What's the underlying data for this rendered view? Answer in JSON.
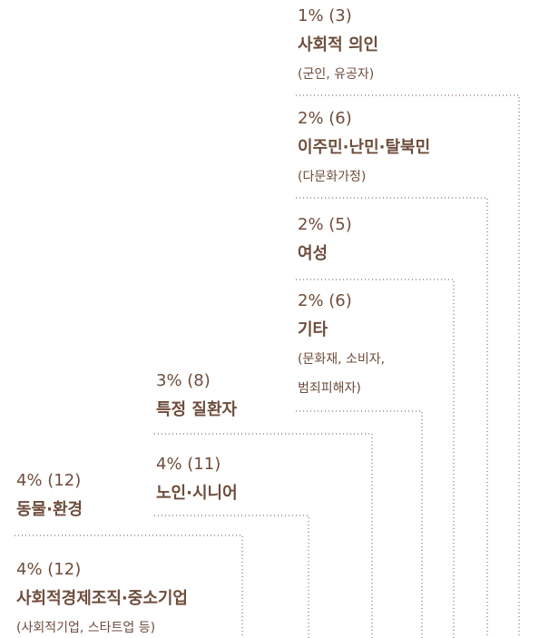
{
  "items": [
    {
      "label": "1% (3)",
      "name": "사회적 의인",
      "notes": [
        "(군인, 유공자)"
      ]
    },
    {
      "label": "2% (6)",
      "name": "이주민·난민·탈북민",
      "notes": [
        "(다문화가정)"
      ]
    },
    {
      "label": "2% (5)",
      "name": "여성",
      "notes": []
    },
    {
      "label": "2% (6)",
      "name": "기타",
      "notes": [
        "(문화재, 소비자,",
        "범죄피해자)"
      ]
    },
    {
      "label": "3% (8)",
      "name": "특정 질환자",
      "notes": []
    },
    {
      "label": "4% (11)",
      "name": "노인·시니어",
      "notes": []
    },
    {
      "label": "4% (12)",
      "name": "동물·환경",
      "notes": []
    },
    {
      "label": "4% (12)",
      "name": "사회적경제조직·중소기업",
      "notes": [
        "(사회적기업, 스타트업 등)"
      ]
    }
  ]
}
